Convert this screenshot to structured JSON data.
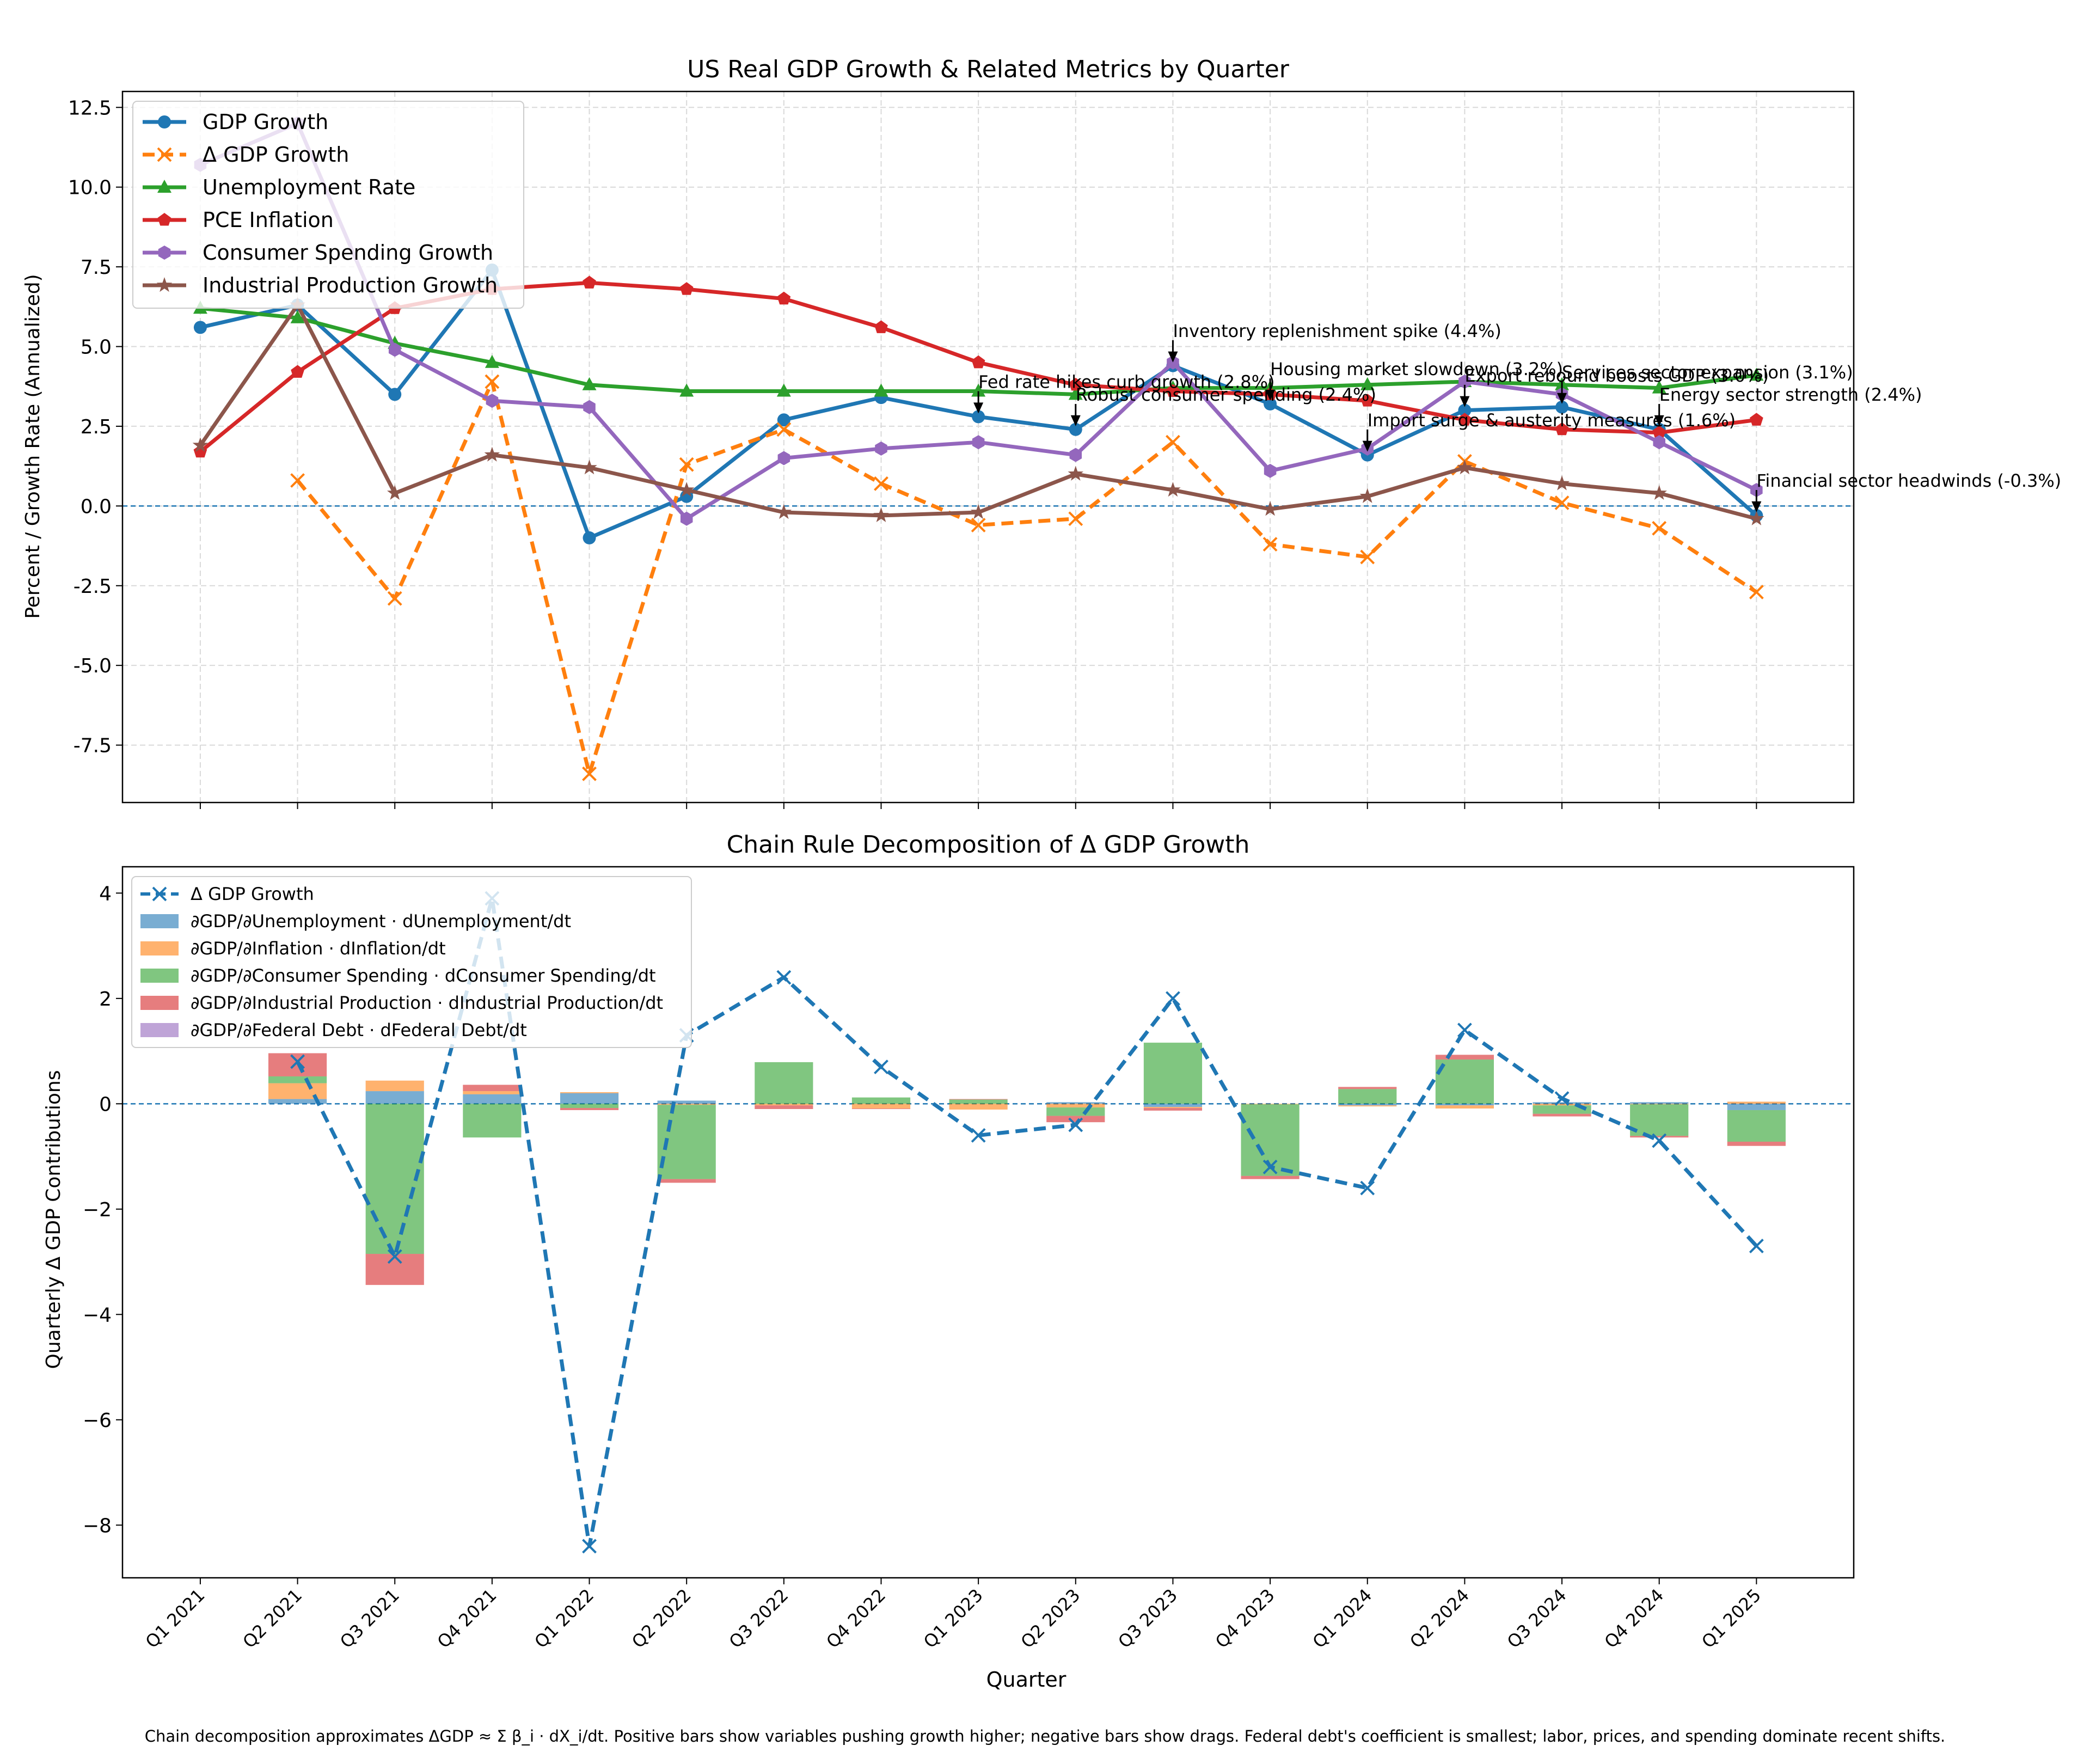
{
  "quarters": [
    "Q1 2021",
    "Q2 2021",
    "Q3 2021",
    "Q4 2021",
    "Q1 2022",
    "Q2 2022",
    "Q3 2022",
    "Q4 2022",
    "Q1 2023",
    "Q2 2023",
    "Q3 2023",
    "Q4 2023",
    "Q1 2024",
    "Q2 2024",
    "Q3 2024",
    "Q4 2024",
    "Q1 2025"
  ],
  "colors": {
    "gdp": "#1f77b4",
    "dgdp": "#ff7f0e",
    "unemp": "#2ca02c",
    "pce": "#d62728",
    "consumer": "#9467bd",
    "industrial": "#8c564b",
    "bar_unemp": "#1f77b4",
    "bar_infl": "#ff7f0e",
    "bar_cons": "#2ca02c",
    "bar_ind": "#d62728",
    "bar_debt": "#9467bd",
    "zero_line": "#1f77b4",
    "grid": "#d9d9d9"
  },
  "caption": "Chain decomposition approximates ΔGDP ≈ Σ β_i · dX_i/dt. Positive bars show variables pushing growth higher; negative bars show drags. Federal debt's coefficient is smallest; labor, prices, and spending dominate recent shifts.",
  "chart_data": [
    {
      "type": "line",
      "title": "US Real GDP Growth & Related Metrics by Quarter",
      "ylabel": "Percent / Growth Rate (Annualized)",
      "xlabel": "",
      "ylim": [
        -9.3,
        13.0
      ],
      "yticks": [
        -7.5,
        -5.0,
        -2.5,
        0.0,
        2.5,
        5.0,
        7.5,
        10.0,
        12.5
      ],
      "grid": true,
      "legend_position": "top-left",
      "series": [
        {
          "key": "gdp",
          "name": "GDP Growth",
          "style": "solid",
          "marker": "circle",
          "values": [
            5.6,
            6.3,
            3.5,
            7.4,
            -1.0,
            0.3,
            2.7,
            3.4,
            2.8,
            2.4,
            4.4,
            3.2,
            1.6,
            3.0,
            3.1,
            2.4,
            -0.3
          ]
        },
        {
          "key": "dgdp",
          "name": "Δ GDP Growth",
          "style": "dashed",
          "marker": "x",
          "values": [
            null,
            0.8,
            -2.9,
            3.9,
            -8.4,
            1.3,
            2.4,
            0.7,
            -0.6,
            -0.4,
            2.0,
            -1.2,
            -1.6,
            1.4,
            0.1,
            -0.7,
            -2.7
          ]
        },
        {
          "key": "unemp",
          "name": "Unemployment Rate",
          "style": "solid",
          "marker": "triangle",
          "values": [
            6.2,
            5.9,
            5.1,
            4.5,
            3.8,
            3.6,
            3.6,
            3.6,
            3.6,
            3.5,
            3.7,
            3.7,
            3.8,
            3.9,
            3.8,
            3.7,
            4.1
          ]
        },
        {
          "key": "pce",
          "name": "PCE Inflation",
          "style": "solid",
          "marker": "pentagon",
          "values": [
            1.7,
            4.2,
            6.2,
            6.8,
            7.0,
            6.8,
            6.5,
            5.6,
            4.5,
            3.8,
            3.6,
            3.5,
            3.3,
            2.7,
            2.4,
            2.3,
            2.7
          ]
        },
        {
          "key": "consumer",
          "name": "Consumer Spending Growth",
          "style": "solid",
          "marker": "hexagon",
          "values": [
            10.7,
            12.0,
            4.9,
            3.3,
            3.1,
            -0.4,
            1.5,
            1.8,
            2.0,
            1.6,
            4.5,
            1.1,
            1.8,
            3.9,
            3.5,
            2.0,
            0.5
          ]
        },
        {
          "key": "industrial",
          "name": "Industrial Production Growth",
          "style": "solid",
          "marker": "star",
          "values": [
            1.9,
            6.3,
            0.4,
            1.6,
            1.2,
            0.5,
            -0.2,
            -0.3,
            -0.2,
            1.0,
            0.5,
            -0.1,
            0.3,
            1.2,
            0.7,
            0.4,
            -0.4
          ]
        }
      ],
      "annotations": [
        {
          "text": "Fed rate hikes curb growth (2.8%)",
          "x": "Q1 2023",
          "y": 2.8,
          "text_y": 3.6
        },
        {
          "text": "Robust consumer spending (2.4%)",
          "x": "Q2 2023",
          "y": 2.4,
          "text_y": 3.2
        },
        {
          "text": "Inventory replenishment spike (4.4%)",
          "x": "Q3 2023",
          "y": 4.4,
          "text_y": 5.2
        },
        {
          "text": "Housing market slowdown (3.2%)",
          "x": "Q4 2023",
          "y": 3.2,
          "text_y": 4.0
        },
        {
          "text": "Import surge & austerity measures (1.6%)",
          "x": "Q1 2024",
          "y": 1.6,
          "text_y": 2.4
        },
        {
          "text": "Export rebound boosts GDP (3.0%)",
          "x": "Q2 2024",
          "y": 3.0,
          "text_y": 3.8
        },
        {
          "text": "Services sector expansion (3.1%)",
          "x": "Q3 2024",
          "y": 3.1,
          "text_y": 3.9
        },
        {
          "text": "Energy sector strength (2.4%)",
          "x": "Q4 2024",
          "y": 2.4,
          "text_y": 3.2
        },
        {
          "text": "Financial sector headwinds (-0.3%)",
          "x": "Q1 2025",
          "y": -0.3,
          "text_y": 0.5
        }
      ]
    },
    {
      "type": "bar",
      "title": "Chain Rule Decomposition of Δ GDP Growth",
      "ylabel": "Quarterly Δ GDP Contributions",
      "xlabel": "Quarter",
      "ylim": [
        -9.0,
        4.5
      ],
      "yticks": [
        -8,
        -6,
        -4,
        -2,
        0,
        2,
        4
      ],
      "grid": false,
      "stacked": true,
      "legend_position": "top-left",
      "line_series": {
        "key": "dgdp",
        "name": "Δ GDP Growth",
        "values": [
          null,
          0.8,
          -2.9,
          3.9,
          -8.4,
          1.3,
          2.4,
          0.7,
          -0.6,
          -0.4,
          2.0,
          -1.2,
          -1.6,
          1.4,
          0.1,
          -0.7,
          -2.7
        ]
      },
      "bar_series": [
        {
          "key": "bar_unemp",
          "name": "∂GDP/∂Unemployment · dUnemployment/dt",
          "values": [
            null,
            0.09,
            0.24,
            0.18,
            0.2,
            0.06,
            0.0,
            0.0,
            0.0,
            0.03,
            -0.06,
            0.0,
            -0.03,
            -0.03,
            0.03,
            0.03,
            -0.12
          ]
        },
        {
          "key": "bar_infl",
          "name": "∂GDP/∂Inflation · dInflation/dt",
          "values": [
            null,
            0.3,
            0.2,
            0.06,
            0.02,
            -0.02,
            -0.03,
            -0.09,
            -0.11,
            -0.07,
            -0.02,
            -0.01,
            -0.02,
            -0.06,
            -0.03,
            -0.01,
            0.04
          ]
        },
        {
          "key": "bar_cons",
          "name": "∂GDP/∂Consumer Spending · dConsumer Spending/dt",
          "values": [
            null,
            0.13,
            -2.85,
            -0.64,
            -0.08,
            -1.41,
            0.79,
            0.12,
            0.08,
            -0.16,
            1.16,
            -1.36,
            0.28,
            0.84,
            -0.16,
            -0.6,
            -0.6
          ]
        },
        {
          "key": "bar_ind",
          "name": "∂GDP/∂Industrial Production · dIndustrial Production/dt",
          "values": [
            null,
            0.44,
            -0.59,
            0.12,
            -0.04,
            -0.07,
            -0.07,
            -0.01,
            0.01,
            -0.12,
            -0.05,
            -0.06,
            0.04,
            0.09,
            -0.05,
            -0.03,
            -0.08
          ]
        },
        {
          "key": "bar_debt",
          "name": "∂GDP/∂Federal Debt · dFederal Debt/dt",
          "values": [
            null,
            0.0,
            0.0,
            0.0,
            0.0,
            0.0,
            0.0,
            0.0,
            0.0,
            0.0,
            0.0,
            0.0,
            0.0,
            0.0,
            0.0,
            0.0,
            0.0
          ]
        }
      ]
    }
  ]
}
